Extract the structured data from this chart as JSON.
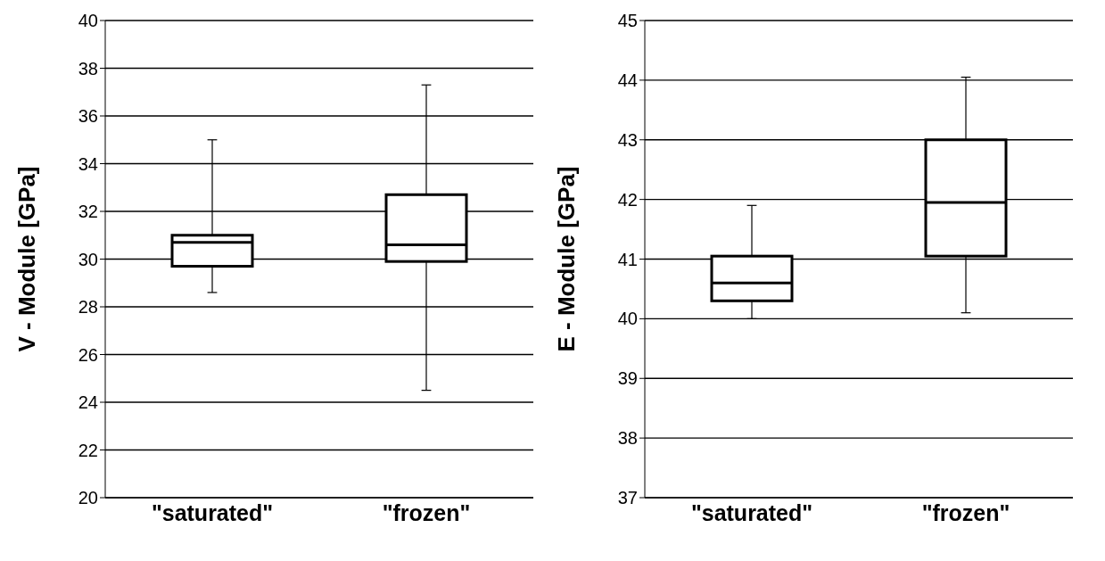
{
  "chart_data": [
    {
      "type": "box",
      "ylabel": "V - Module [GPa]",
      "categories": [
        "\"saturated\"",
        "\"frozen\""
      ],
      "boxes": [
        {
          "low": 28.6,
          "q1": 29.7,
          "median": 30.7,
          "q3": 31.0,
          "high": 35.0
        },
        {
          "low": 24.5,
          "q1": 29.9,
          "median": 30.6,
          "q3": 32.7,
          "high": 37.3
        }
      ],
      "ylim": [
        20,
        40
      ],
      "yticks": [
        20,
        22,
        24,
        26,
        28,
        30,
        32,
        34,
        36,
        38,
        40
      ],
      "grid": "y",
      "legend": false
    },
    {
      "type": "box",
      "ylabel": "E - Module [GPa]",
      "categories": [
        "\"saturated\"",
        "\"frozen\""
      ],
      "boxes": [
        {
          "low": 40.0,
          "q1": 40.3,
          "median": 40.6,
          "q3": 41.05,
          "high": 41.9
        },
        {
          "low": 40.1,
          "q1": 41.05,
          "median": 41.95,
          "q3": 43.0,
          "high": 44.05
        }
      ],
      "ylim": [
        37,
        45
      ],
      "yticks": [
        37,
        38,
        39,
        40,
        41,
        42,
        43,
        44,
        45
      ],
      "grid": "y",
      "legend": false
    }
  ]
}
